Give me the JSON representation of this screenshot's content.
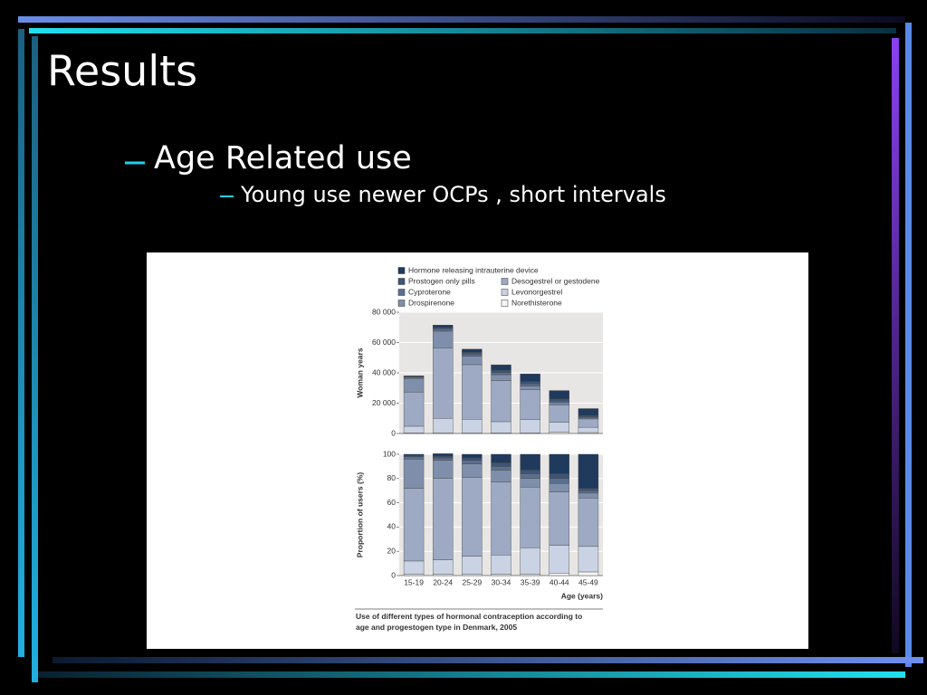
{
  "slide": {
    "title": "Results",
    "bullet": "Age Related use",
    "sub_bullet": "Young use newer OCPs , short intervals"
  },
  "chart_data": [
    {
      "type": "stacked_bar",
      "ylabel": "Woman years",
      "ylim": [
        0,
        80000
      ],
      "yticks": [
        0,
        {
          "value": 20000,
          "label": "20 000"
        },
        {
          "value": 40000,
          "label": "40 000"
        },
        {
          "value": 60000,
          "label": "60 000"
        },
        {
          "value": 80000,
          "label": "80 000"
        }
      ],
      "grid": true,
      "series": [
        {
          "name": "Norethisterone",
          "color": "#f4f4f4",
          "values": [
            300,
            500,
            400,
            300,
            300,
            800,
            600
          ]
        },
        {
          "name": "Levonorgestrel",
          "color": "#c9d3e3",
          "values": [
            4500,
            9500,
            9000,
            7500,
            9000,
            6500,
            3500
          ]
        },
        {
          "name": "Desogestrel or gestodene",
          "color": "#9eaac4",
          "values": [
            22500,
            46500,
            36000,
            27000,
            19500,
            11500,
            5500
          ]
        },
        {
          "name": "Drospirenone",
          "color": "#7f8fab",
          "values": [
            9000,
            11000,
            5500,
            4000,
            2500,
            1500,
            600
          ]
        },
        {
          "name": "Cyproterone",
          "color": "#5b6f8f",
          "values": [
            1000,
            1500,
            1500,
            1500,
            1500,
            1000,
            700
          ]
        },
        {
          "name": "Prostogen only pills",
          "color": "#3d5577",
          "values": [
            300,
            1000,
            1200,
            1500,
            1500,
            1500,
            1000
          ]
        },
        {
          "name": "Hormone releasing intrauterine device",
          "color": "#1f3a5c",
          "values": [
            400,
            1500,
            2000,
            3500,
            5000,
            5500,
            4500
          ]
        }
      ]
    },
    {
      "type": "stacked_bar",
      "ylabel": "Proportion of users (%)",
      "xlabel": "Age (years)",
      "caption": "Use of different types of hormonal contraception according to age and progestogen type in Denmark, 2005",
      "categories": [
        "15-19",
        "20-24",
        "25-29",
        "30-34",
        "35-39",
        "40-44",
        "45-49"
      ],
      "ylim": [
        0,
        100
      ],
      "yticks": [
        0,
        20,
        40,
        60,
        80,
        100
      ],
      "grid": true,
      "series": [
        {
          "color": "#f4f4f4",
          "values": [
            1,
            1,
            1,
            1,
            1,
            2,
            3
          ]
        },
        {
          "color": "#c9d3e3",
          "values": [
            11,
            12,
            15,
            16,
            22,
            23,
            21
          ]
        },
        {
          "color": "#9eaac4",
          "values": [
            60,
            67,
            65,
            60,
            50,
            44,
            40
          ]
        },
        {
          "color": "#7f8fab",
          "values": [
            24,
            15,
            11,
            10,
            7,
            7,
            4
          ]
        },
        {
          "color": "#5b6f8f",
          "values": [
            2,
            2,
            3,
            3,
            4,
            4,
            2
          ]
        },
        {
          "color": "#3d5577",
          "values": [
            1,
            1.5,
            2,
            3,
            3,
            4,
            2
          ]
        },
        {
          "color": "#1f3a5c",
          "values": [
            1,
            2,
            3,
            7,
            13,
            16,
            28
          ]
        }
      ]
    }
  ]
}
